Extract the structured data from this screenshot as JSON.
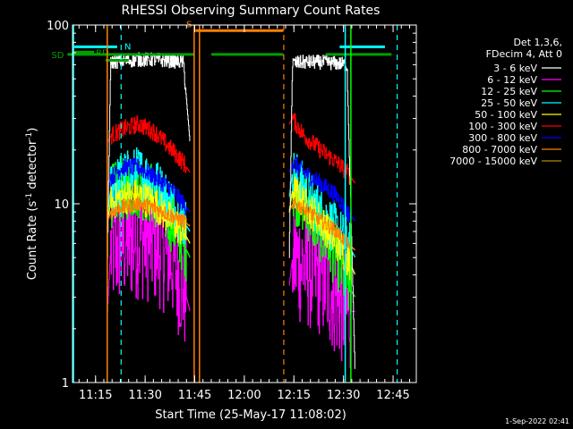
{
  "chart_data": {
    "type": "line",
    "title": "RHESSI Observing Summary Count Rates",
    "xlabel": "Start Time (25-May-17 11:08:02)",
    "ylabel_main": "Count Rate (s",
    "ylabel_sup1": "-1",
    "ylabel_mid": " detector",
    "ylabel_sup2": "-1",
    "ylabel_end": ")",
    "y_scale": "log",
    "ylim": [
      1,
      100
    ],
    "y_ticks": [
      {
        "value": 1,
        "label": "1"
      },
      {
        "value": 10,
        "label": "10"
      },
      {
        "value": 100,
        "label": "100"
      }
    ],
    "x_unit": "minutes after 11:08:02",
    "xlim": [
      0,
      104
    ],
    "x_ticks": [
      {
        "value": 6.97,
        "label": "11:15"
      },
      {
        "value": 21.97,
        "label": "11:30"
      },
      {
        "value": 36.97,
        "label": "11:45"
      },
      {
        "value": 51.97,
        "label": "12:00"
      },
      {
        "value": 66.97,
        "label": "12:15"
      },
      {
        "value": 81.97,
        "label": "12:30"
      },
      {
        "value": 96.97,
        "label": "12:45"
      }
    ],
    "legend_header": [
      "Det 1,3,6,",
      "FDecim 4, Att 0"
    ],
    "legend_position": "right",
    "series": [
      {
        "name": "3 - 6 keV",
        "color": "#ffffff",
        "segments": [
          {
            "x": [
              10.5,
              11.5,
              15,
              20,
              25,
              30,
              33.5,
              35.5
            ],
            "y": [
              5,
              62,
              63,
              64,
              64,
              63,
              62,
              22
            ]
          },
          {
            "x": [
              65.5,
              66.5,
              70,
              75,
              80,
              83,
              85.5
            ],
            "y": [
              5,
              61,
              62,
              62,
              61,
              60,
              1
            ]
          }
        ],
        "noise": 0.04
      },
      {
        "name": "6 - 12 keV",
        "color": "#ff00ff",
        "segments": [
          {
            "x": [
              10.5,
              11.5,
              15,
              20,
              25,
              30,
              33.5,
              35.5
            ],
            "y": [
              2.5,
              5.5,
              6,
              6.5,
              6,
              5,
              3.5,
              2.5
            ]
          },
          {
            "x": [
              65.5,
              66.5,
              70,
              75,
              80,
              83,
              85.5
            ],
            "y": [
              3.5,
              5,
              4.5,
              4,
              3,
              2.5,
              2.5
            ]
          }
        ],
        "noise": 0.35
      },
      {
        "name": "12 - 25 keV",
        "color": "#00ff00",
        "segments": [
          {
            "x": [
              10.5,
              11.5,
              15,
              20,
              25,
              30,
              33.5,
              35.5
            ],
            "y": [
              8,
              11,
              12,
              12.5,
              11,
              8,
              6,
              5
            ]
          },
          {
            "x": [
              65.5,
              66.5,
              70,
              75,
              80,
              83,
              85.5
            ],
            "y": [
              9,
              12,
              10,
              7,
              5,
              3.5,
              3
            ]
          }
        ],
        "noise": 0.18
      },
      {
        "name": "25 - 50 keV",
        "color": "#00ffff",
        "segments": [
          {
            "x": [
              10.5,
              11.5,
              15,
              20,
              25,
              30,
              33.5,
              35.5
            ],
            "y": [
              9,
              12,
              14,
              15,
              13,
              10,
              8,
              7
            ]
          },
          {
            "x": [
              65.5,
              66.5,
              70,
              75,
              80,
              83,
              85.5
            ],
            "y": [
              11,
              15,
              12,
              9,
              7,
              6,
              5
            ]
          }
        ],
        "noise": 0.15
      },
      {
        "name": "50 - 100 keV",
        "color": "#ffff00",
        "segments": [
          {
            "x": [
              10.5,
              11.5,
              15,
              20,
              25,
              30,
              33.5,
              35.5
            ],
            "y": [
              8,
              10,
              11,
              11,
              10,
              8,
              7,
              6
            ]
          },
          {
            "x": [
              65.5,
              66.5,
              70,
              75,
              80,
              83,
              85.5
            ],
            "y": [
              9,
              12,
              10,
              8,
              6,
              5,
              4
            ]
          }
        ],
        "noise": 0.1
      },
      {
        "name": "100 - 300 keV",
        "color": "#ff0000",
        "segments": [
          {
            "x": [
              10.5,
              11.5,
              15,
              20,
              25,
              30,
              33.5,
              35.5
            ],
            "y": [
              22,
              24,
              26,
              28,
              25,
              20,
              17,
              15
            ]
          },
          {
            "x": [
              65.5,
              66.5,
              70,
              75,
              80,
              83,
              85.5
            ],
            "y": [
              28,
              30,
              24,
              20,
              17,
              15,
              13
            ]
          }
        ],
        "noise": 0.05
      },
      {
        "name": "300 - 800 keV",
        "color": "#0000ff",
        "segments": [
          {
            "x": [
              10.5,
              11.5,
              15,
              20,
              25,
              30,
              33.5,
              35.5
            ],
            "y": [
              12,
              14,
              16,
              16,
              14,
              12,
              10,
              9
            ]
          },
          {
            "x": [
              65.5,
              66.5,
              70,
              75,
              80,
              83,
              85.5
            ],
            "y": [
              15,
              17,
              15,
              13,
              11,
              9,
              8
            ]
          }
        ],
        "noise": 0.05
      },
      {
        "name": "800 - 7000 keV",
        "color": "#ff8000",
        "segments": [
          {
            "x": [
              10.5,
              11.5,
              15,
              20,
              25,
              30,
              33.5,
              35.5
            ],
            "y": [
              8,
              9,
              9.5,
              10,
              9.5,
              8.5,
              8,
              7.5
            ]
          },
          {
            "x": [
              65.5,
              66.5,
              70,
              75,
              80,
              83,
              85.5
            ],
            "y": [
              9,
              10,
              9.5,
              8,
              7,
              6,
              5.5
            ]
          }
        ],
        "noise": 0.04
      },
      {
        "name": "7000 - 15000 keV",
        "color": "#b8860b",
        "segments": [],
        "noise": 0
      }
    ],
    "flags": [
      {
        "label": "N",
        "color": "#00ffff",
        "segments": [
          [
            0.5,
            13.5
          ],
          [
            80.8,
            94.5
          ]
        ],
        "y_value": 75.5,
        "side": "above"
      },
      {
        "label": "S",
        "color": "#ff8000",
        "segments": [
          [
            37.2,
            63.8
          ]
        ],
        "y_value": 93,
        "side": "left"
      },
      {
        "label": "RD",
        "color": "#00a000",
        "segments": [
          [
            0.5,
            6.5
          ]
        ],
        "y_value": 70.5,
        "side": "right"
      },
      {
        "label": "SD",
        "color": "#00a000",
        "segments": [
          [
            -1.5,
            36.8
          ],
          [
            42,
            63.8
          ],
          [
            76.5,
            96.5
          ]
        ],
        "y_value": 68.5,
        "side": "left"
      },
      {
        "label": "",
        "color": "#00a000",
        "segments": [
          [
            10,
            17
          ]
        ],
        "y_value": 63.5,
        "side": "none"
      }
    ],
    "vlines_solid": [
      {
        "x": 0.3,
        "color": "#00ffff"
      },
      {
        "x": 10.5,
        "color": "#ff8000"
      },
      {
        "x": 36.8,
        "color": "#ff8000"
      },
      {
        "x": 38.4,
        "color": "#ff8000"
      },
      {
        "x": 82.5,
        "color": "#00ffff"
      },
      {
        "x": 84.2,
        "color": "#00ff00"
      }
    ],
    "vlines_dashed": [
      {
        "x": 14.7,
        "color": "#00ffff"
      },
      {
        "x": 63.9,
        "color": "#ff8000"
      },
      {
        "x": 98.2,
        "color": "#00ffff"
      }
    ]
  },
  "footer_timestamp": "1-Sep-2022 02:41"
}
